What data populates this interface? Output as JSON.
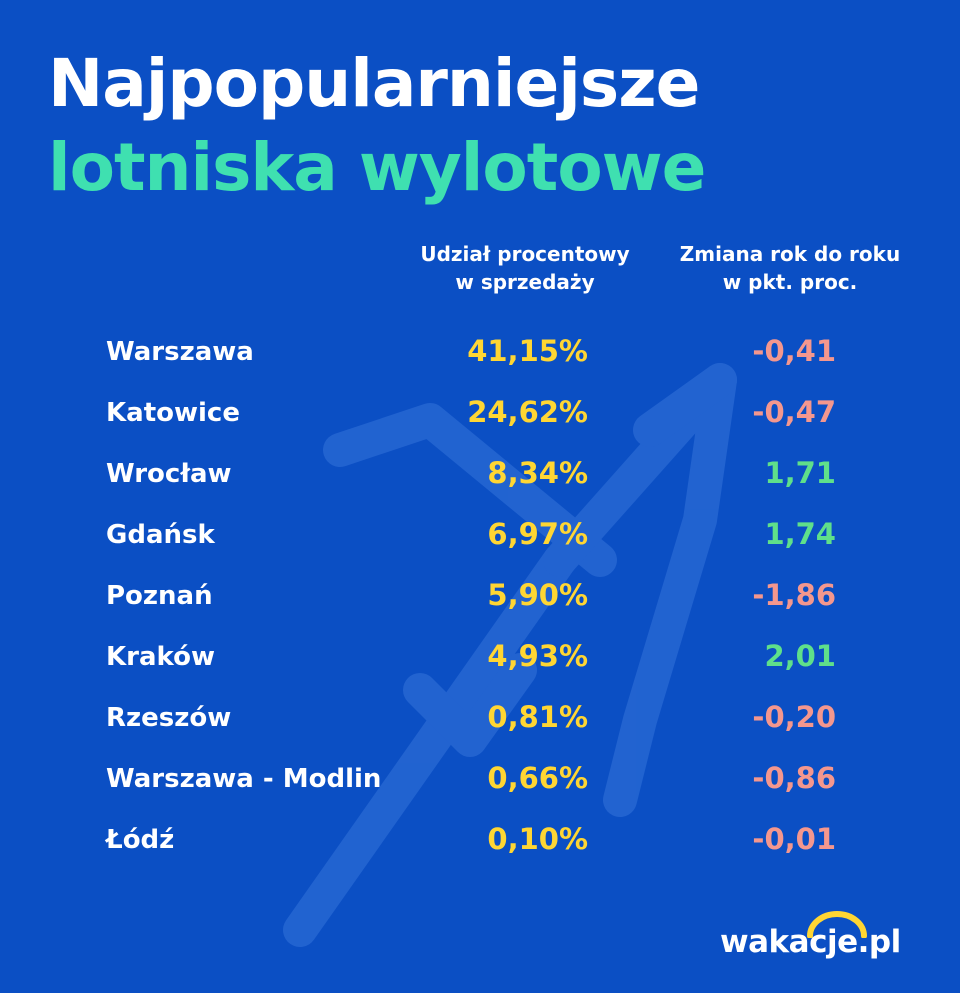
{
  "title": {
    "line1": "Najpopularniejsze",
    "line2": "lotniska wylotowe"
  },
  "columns": {
    "share": {
      "line1": "Udział procentowy",
      "line2": "w sprzedaży"
    },
    "change": {
      "line1": "Zmiana rok do roku",
      "line2": "w pkt. proc."
    }
  },
  "chart_data": {
    "type": "table",
    "title": "Najpopularniejsze lotniska wylotowe",
    "columns": [
      "",
      "Udział procentowy w sprzedaży",
      "Zmiana rok do roku w pkt. proc."
    ],
    "rows": [
      {
        "city": "Warszawa",
        "share": "41,15%",
        "change": "-0,41",
        "change_value": -0.41
      },
      {
        "city": "Katowice",
        "share": "24,62%",
        "change": "-0,47",
        "change_value": -0.47
      },
      {
        "city": "Wrocław",
        "share": "8,34%",
        "change": "1,71",
        "change_value": 1.71
      },
      {
        "city": "Gdańsk",
        "share": "6,97%",
        "change": "1,74",
        "change_value": 1.74
      },
      {
        "city": "Poznań",
        "share": "5,90%",
        "change": "-1,86",
        "change_value": -1.86
      },
      {
        "city": "Kraków",
        "share": "4,93%",
        "change": "2,01",
        "change_value": 2.01
      },
      {
        "city": "Rzeszów",
        "share": "0,81%",
        "change": "-0,20",
        "change_value": -0.2
      },
      {
        "city": "Warszawa - Modlin",
        "share": "0,66%",
        "change": "-0,86",
        "change_value": -0.86
      },
      {
        "city": "Łódź",
        "share": "0,10%",
        "change": "-0,01",
        "change_value": -0.01
      }
    ]
  },
  "colors": {
    "background": "#0b4fc4",
    "title_accent": "#3fe0b0",
    "share": "#ffd633",
    "positive": "#5fe08a",
    "negative": "#f4978e",
    "logo_arc": "#ffd633"
  },
  "logo": {
    "text": "wakacje.pl"
  },
  "icons": {
    "background": "airplane-icon",
    "logo": "sun-arc-icon"
  }
}
